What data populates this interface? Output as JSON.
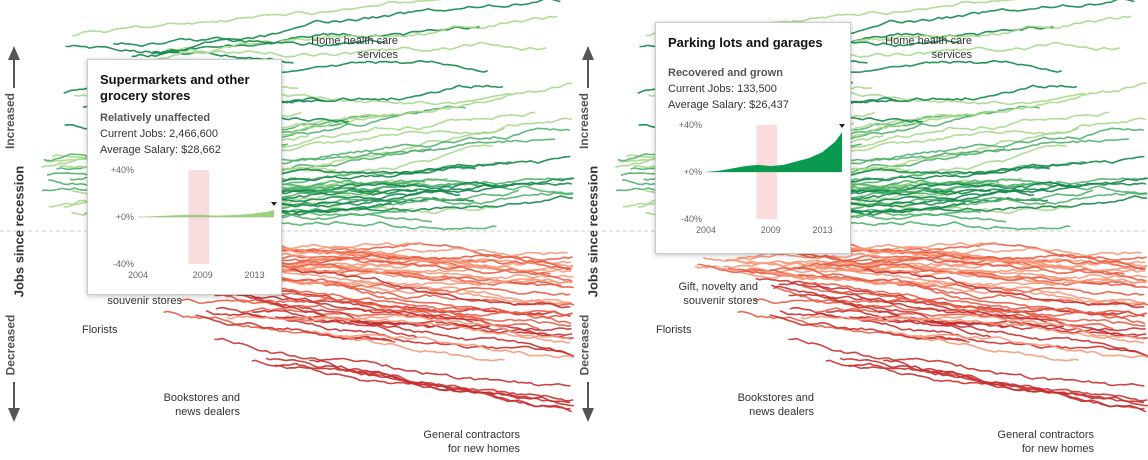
{
  "axes": {
    "increased_label": "Increased",
    "middle_label": "Jobs since recession",
    "decreased_label": "Decreased"
  },
  "annotations": {
    "home_health": "Home health care services",
    "gift_stores": "Gift, novelty and souvenir stores",
    "florists": "Florists",
    "bookstores": "Bookstores and news dealers",
    "general_contractors": "General contractors for new homes"
  },
  "chart_data": [
    {
      "type": "line",
      "title": "Supermarkets and other grocery stores",
      "status": "Relatively unaffected",
      "current_jobs_label": "Current Jobs: 2,466,600",
      "avg_salary_label": "Average Salary: $28,662",
      "x_ticks": [
        "2004",
        "2009",
        "2013"
      ],
      "y_ticks": [
        "+40%",
        "+0%",
        "-40%"
      ],
      "ylim": [
        -40,
        40
      ],
      "xlim": [
        2004,
        2014.5
      ],
      "recession": [
        2007.9,
        2009.5
      ],
      "color": "#8fce6a",
      "x": [
        2004,
        2005,
        2006,
        2007,
        2008,
        2009,
        2010,
        2011,
        2012,
        2013,
        2014,
        2014.5
      ],
      "y": [
        0,
        0.5,
        1,
        1.5,
        2,
        1.8,
        1.2,
        1.5,
        2,
        3,
        4.5,
        6
      ]
    },
    {
      "type": "area",
      "title": "Parking lots and garages",
      "status": "Recovered and grown",
      "current_jobs_label": "Current Jobs: 133,500",
      "avg_salary_label": "Average Salary: $26,437",
      "x_ticks": [
        "2004",
        "2009",
        "2013"
      ],
      "y_ticks": [
        "+40%",
        "+0%",
        "-40%"
      ],
      "ylim": [
        -40,
        40
      ],
      "xlim": [
        2004,
        2014.5
      ],
      "recession": [
        2007.9,
        2009.5
      ],
      "color": "#0a9a4f",
      "x": [
        2004,
        2005,
        2006,
        2007,
        2008,
        2009,
        2010,
        2011,
        2012,
        2013,
        2014,
        2014.5
      ],
      "y": [
        0,
        1,
        3,
        5,
        6,
        5,
        6,
        9,
        12,
        17,
        26,
        34
      ]
    }
  ],
  "colors": {
    "grow_dark": "#12874a",
    "grow_mid": "#4fb16b",
    "grow_light": "#a7d98b",
    "decline_dark": "#c62f2f",
    "decline_mid": "#e95b44",
    "decline_light": "#f6997a",
    "recession_band": "#fbdcdc"
  }
}
